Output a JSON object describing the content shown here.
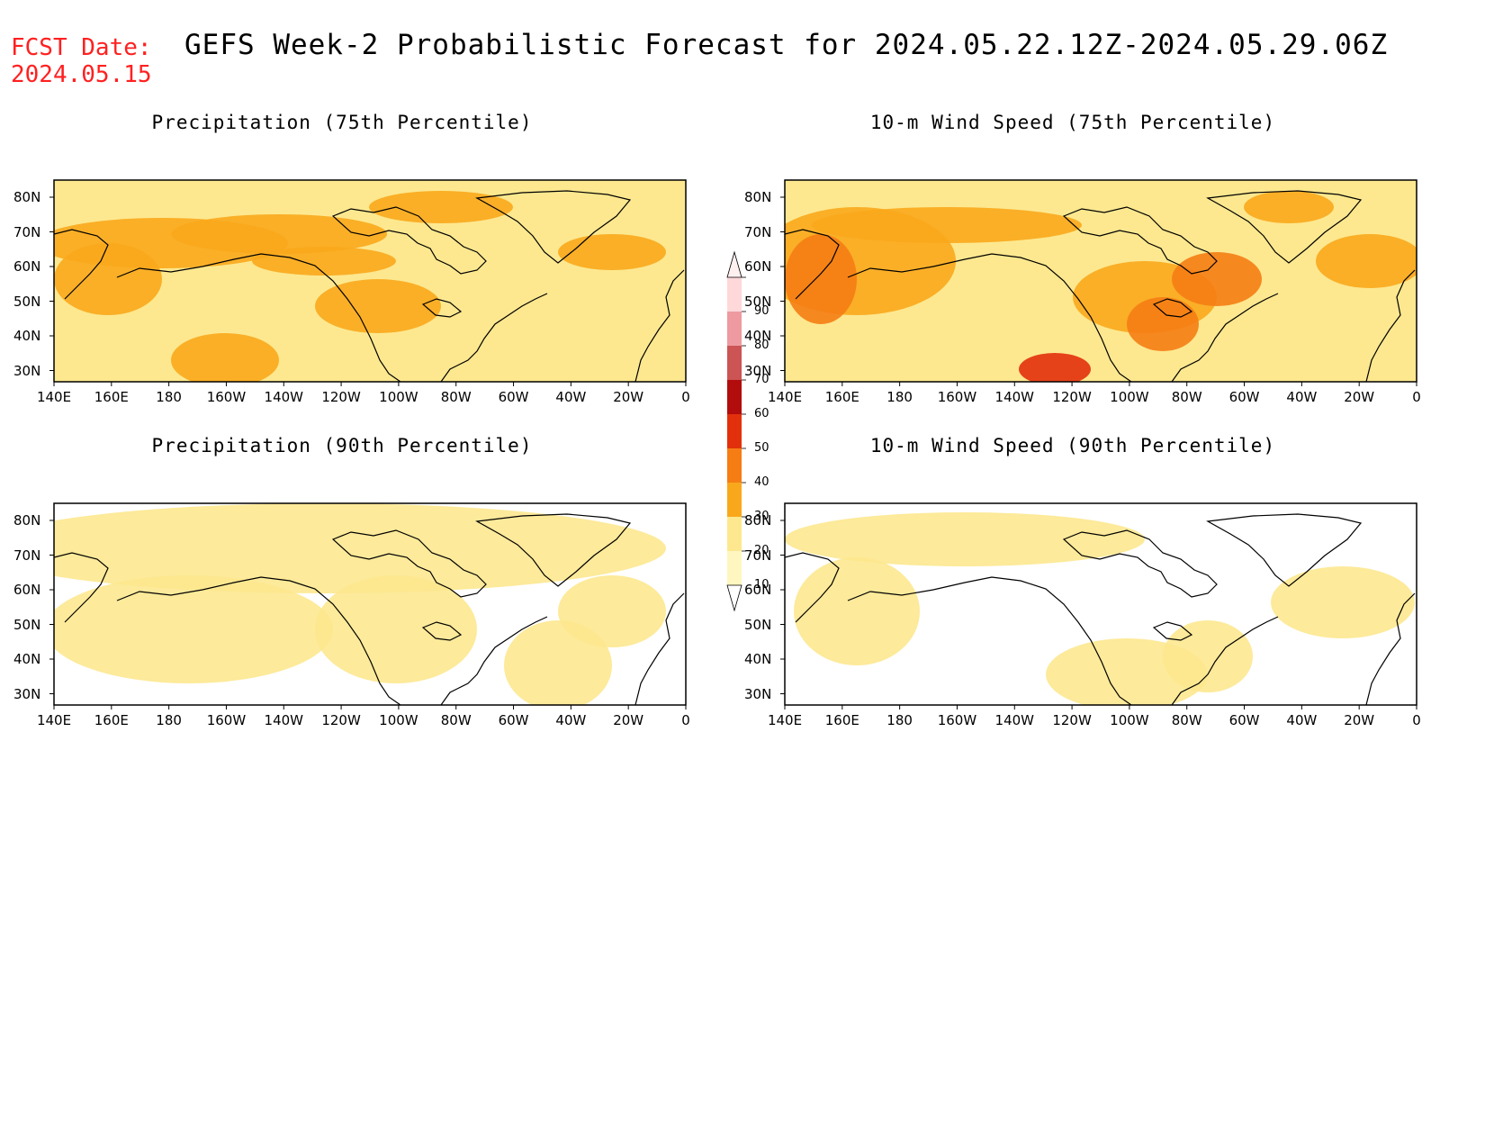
{
  "forecast_date": {
    "line1": "FCST Date:",
    "line2": "2024.05.15"
  },
  "title": "GEFS Week-2 Probabilistic Forecast for 2024.05.22.12Z-2024.05.29.06Z",
  "panels": [
    {
      "title": "Precipitation (75th Percentile)",
      "level": "high",
      "variable": "precip"
    },
    {
      "title": "10-m Wind Speed (75th Percentile)",
      "level": "high",
      "variable": "wind"
    },
    {
      "title": "Precipitation (90th Percentile)",
      "level": "low",
      "variable": "precip"
    },
    {
      "title": "10-m Wind Speed (90th Percentile)",
      "level": "low",
      "variable": "wind"
    }
  ],
  "lat_labels": [
    "80N",
    "70N",
    "60N",
    "50N",
    "40N",
    "30N"
  ],
  "lon_labels": [
    "140E",
    "160E",
    "180",
    "160W",
    "140W",
    "120W",
    "100W",
    "80W",
    "60W",
    "40W",
    "20W",
    "0"
  ],
  "colorbar": {
    "levels": [
      "10",
      "20",
      "30",
      "40",
      "50",
      "60",
      "70",
      "80",
      "90"
    ],
    "colors": [
      "#fff6c0",
      "#fde88f",
      "#f9a81c",
      "#f57d14",
      "#e3300c",
      "#b20c0c",
      "#cc5454",
      "#ee9aa0",
      "#ffd8da"
    ]
  }
}
